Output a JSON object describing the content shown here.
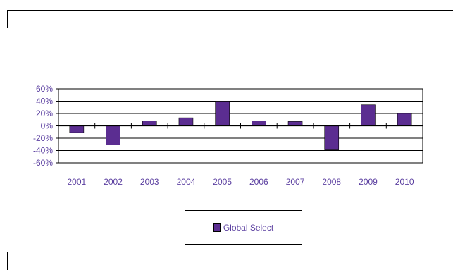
{
  "chart_data": {
    "type": "bar",
    "categories": [
      "2001",
      "2002",
      "2003",
      "2004",
      "2005",
      "2006",
      "2007",
      "2008",
      "2009",
      "2010"
    ],
    "series": [
      {
        "name": "Global Select",
        "values": [
          -11,
          -31,
          8,
          13,
          40,
          8,
          7,
          -39,
          34,
          20
        ]
      }
    ],
    "y_ticks": [
      "60%",
      "40%",
      "20%",
      "0%",
      "-20%",
      "-40%",
      "-60%"
    ],
    "ylim": [
      -60,
      60
    ],
    "y_unit": "%",
    "grid": true,
    "legend_position": "bottom",
    "colors": {
      "bar": "#5b2d91",
      "text": "#5b3fa0",
      "axis": "#000000"
    }
  }
}
